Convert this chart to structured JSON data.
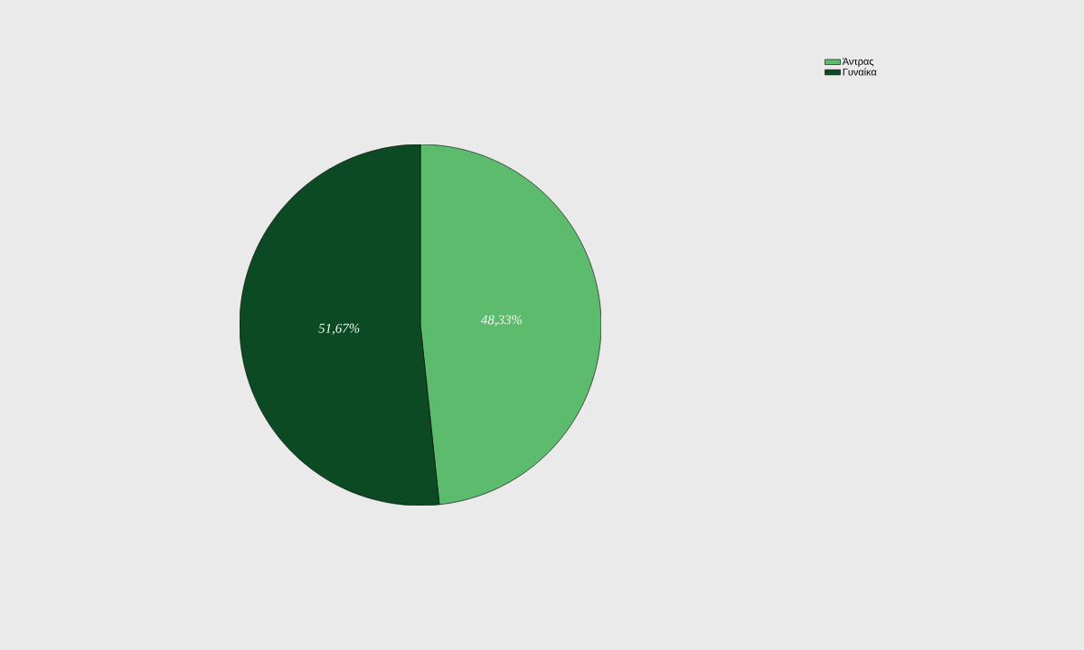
{
  "chart_data": {
    "type": "pie",
    "categories": [
      "Άντρας",
      "Γυναίκα"
    ],
    "values": [
      48.33,
      51.67
    ],
    "colors": [
      "#5dbb6e",
      "#0b4a22"
    ],
    "value_labels": [
      "48,33%",
      "51,67%"
    ],
    "legend": "top right"
  }
}
